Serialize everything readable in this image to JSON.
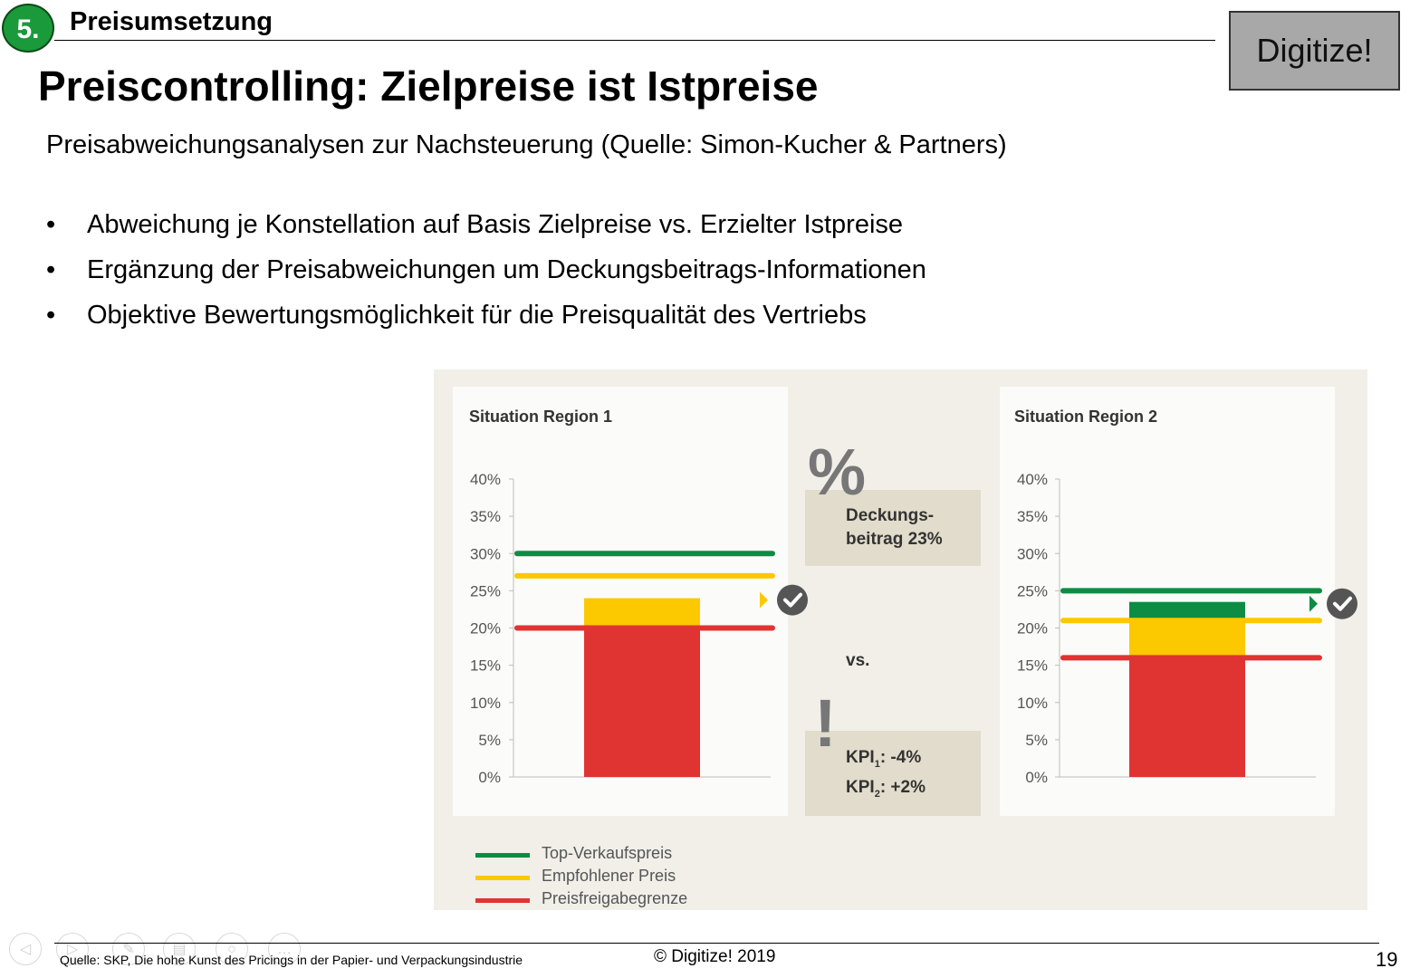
{
  "header": {
    "section_number": "5.",
    "section_title": "Preisumsetzung",
    "logo_text": "Digitize!"
  },
  "title": "Preiscontrolling: Zielpreise ist Istpreise",
  "subtitle": "Preisabweichungsanalysen zur Nachsteuerung (Quelle: Simon-Kucher & Partners)",
  "bullets": [
    "Abweichung je Konstellation auf Basis Zielpreise vs. Erzielter Istpreise",
    "Ergänzung der Preisabweichungen um Deckungsbeitrags-Informationen",
    "Objektive Bewertungsmöglichkeit für die Preisqualität des Vertriebs"
  ],
  "bullet_symbol": "•",
  "middle": {
    "percent_symbol": "%",
    "db_line1": "Deckungs-",
    "db_line2": "beitrag 23%",
    "vs": "vs.",
    "exclamation": "!",
    "kpi1_label": "KPI",
    "kpi1_sub": "1",
    "kpi1_value": ":  -4%",
    "kpi2_label": "KPI",
    "kpi2_sub": "2",
    "kpi2_value": ":  +2%"
  },
  "colors": {
    "top": "#0d8c43",
    "empfohlen": "#fcc800",
    "preisfreigabe": "#e03432",
    "bar_green": "#0d8c43",
    "check": "#555555",
    "marker_r1": "#fcc800",
    "marker_r2": "#0d8c43"
  },
  "chart_data": [
    {
      "type": "bar",
      "title": "Situation Region 1",
      "ylim": [
        0,
        40
      ],
      "yticks": [
        "40%",
        "35%",
        "30%",
        "25%",
        "20%",
        "15%",
        "10%",
        "5%",
        "0%"
      ],
      "bar_value": 24,
      "bar_segments": [
        {
          "series": "Preisfreigabegrenze",
          "from": 0,
          "to": 20
        },
        {
          "series": "Empfohlener Preis",
          "from": 20,
          "to": 24
        }
      ],
      "lines": [
        {
          "name": "Top-Verkaufspreis",
          "value": 30
        },
        {
          "name": "Empfohlener Preis",
          "value": 27
        },
        {
          "name": "Preisfreigabegrenze",
          "value": 20
        }
      ]
    },
    {
      "type": "bar",
      "title": "Situation Region 2",
      "ylim": [
        0,
        40
      ],
      "yticks": [
        "40%",
        "35%",
        "30%",
        "25%",
        "20%",
        "15%",
        "10%",
        "5%",
        "0%"
      ],
      "bar_value": 23.5,
      "bar_segments": [
        {
          "series": "Preisfreigabegrenze",
          "from": 0,
          "to": 16
        },
        {
          "series": "Empfohlener Preis",
          "from": 16,
          "to": 21
        },
        {
          "series": "Top-Verkaufspreis",
          "from": 21,
          "to": 23.5
        }
      ],
      "lines": [
        {
          "name": "Top-Verkaufspreis",
          "value": 25
        },
        {
          "name": "Empfohlener Preis",
          "value": 21
        },
        {
          "name": "Preisfreigabegrenze",
          "value": 16
        }
      ]
    }
  ],
  "legend": [
    "Top-Verkaufspreis",
    "Empfohlener Preis",
    "Preisfreigabegrenze"
  ],
  "footer": {
    "source": "Quelle: SKP, Die hohe Kunst des Pricings in der Papier- und Verpackungsindustrie",
    "copyright": "© Digitize! 2019",
    "page": "19"
  }
}
